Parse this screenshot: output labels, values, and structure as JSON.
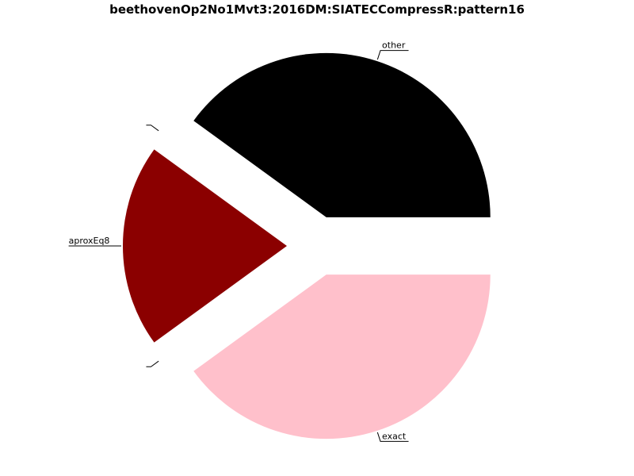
{
  "chart_data": {
    "type": "pie",
    "title": "beethovenOp2No1Mvt3:2016DM:SIATECCompressR:pattern16",
    "slices": [
      {
        "label": "other",
        "value": 0.4,
        "color": "#000000"
      },
      {
        "label": "",
        "value": 0.0,
        "color": "#b0b0b0"
      },
      {
        "label": "aproxEq8",
        "value": 0.2,
        "color": "#8b0000"
      },
      {
        "label": "",
        "value": 0.0,
        "color": "#b0b0b0"
      },
      {
        "label": "exact",
        "value": 0.4,
        "color": "#ffc0cb"
      }
    ],
    "start_angle_deg": 0,
    "direction": "counterclockwise",
    "exploded": true,
    "legend": "none"
  }
}
